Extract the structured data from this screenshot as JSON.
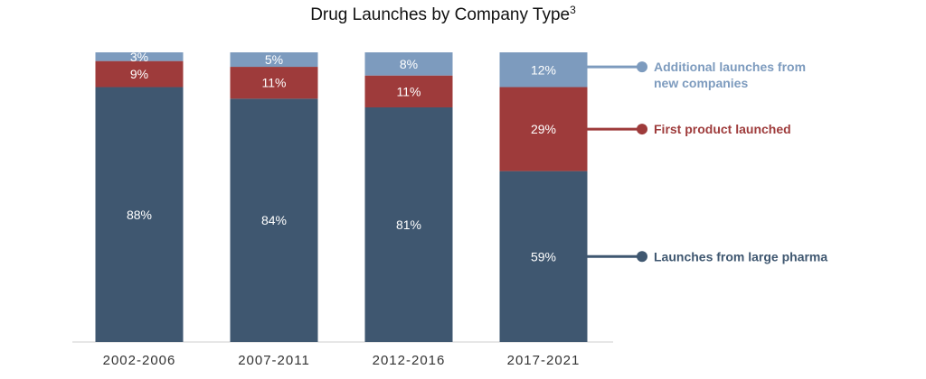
{
  "chart_data": {
    "type": "bar",
    "stacked": true,
    "title": "Drug Launches by Company Type",
    "title_superscript": "3",
    "categories": [
      "2002-2006",
      "2007-2011",
      "2012-2016",
      "2017-2021"
    ],
    "series": [
      {
        "name": "Launches from large pharma",
        "color": "#3F5770",
        "values": [
          88,
          84,
          81,
          59
        ],
        "labels": [
          "88%",
          "84%",
          "81%",
          "59%"
        ]
      },
      {
        "name": "First product launched",
        "color": "#9E3B3B",
        "values": [
          9,
          11,
          11,
          29
        ],
        "labels": [
          "9%",
          "11%",
          "11%",
          "29%"
        ]
      },
      {
        "name": "Additional launches from new companies",
        "color": "#7D9BBE",
        "values": [
          3,
          5,
          8,
          12
        ],
        "labels": [
          "3%",
          "5%",
          "8%",
          "12%"
        ]
      }
    ],
    "legend": {
      "placement": "right",
      "entries": [
        {
          "series": 2,
          "lines": [
            "Additional launches from",
            "new companies"
          ],
          "color": "#7D9BBE"
        },
        {
          "series": 1,
          "lines": [
            "First product launched"
          ],
          "color": "#9E3B3B"
        },
        {
          "series": 0,
          "lines": [
            "Launches from large pharma"
          ],
          "color": "#3F5770"
        }
      ]
    },
    "ylim": [
      0,
      100
    ],
    "grid": false,
    "xlabel": "",
    "ylabel": ""
  }
}
